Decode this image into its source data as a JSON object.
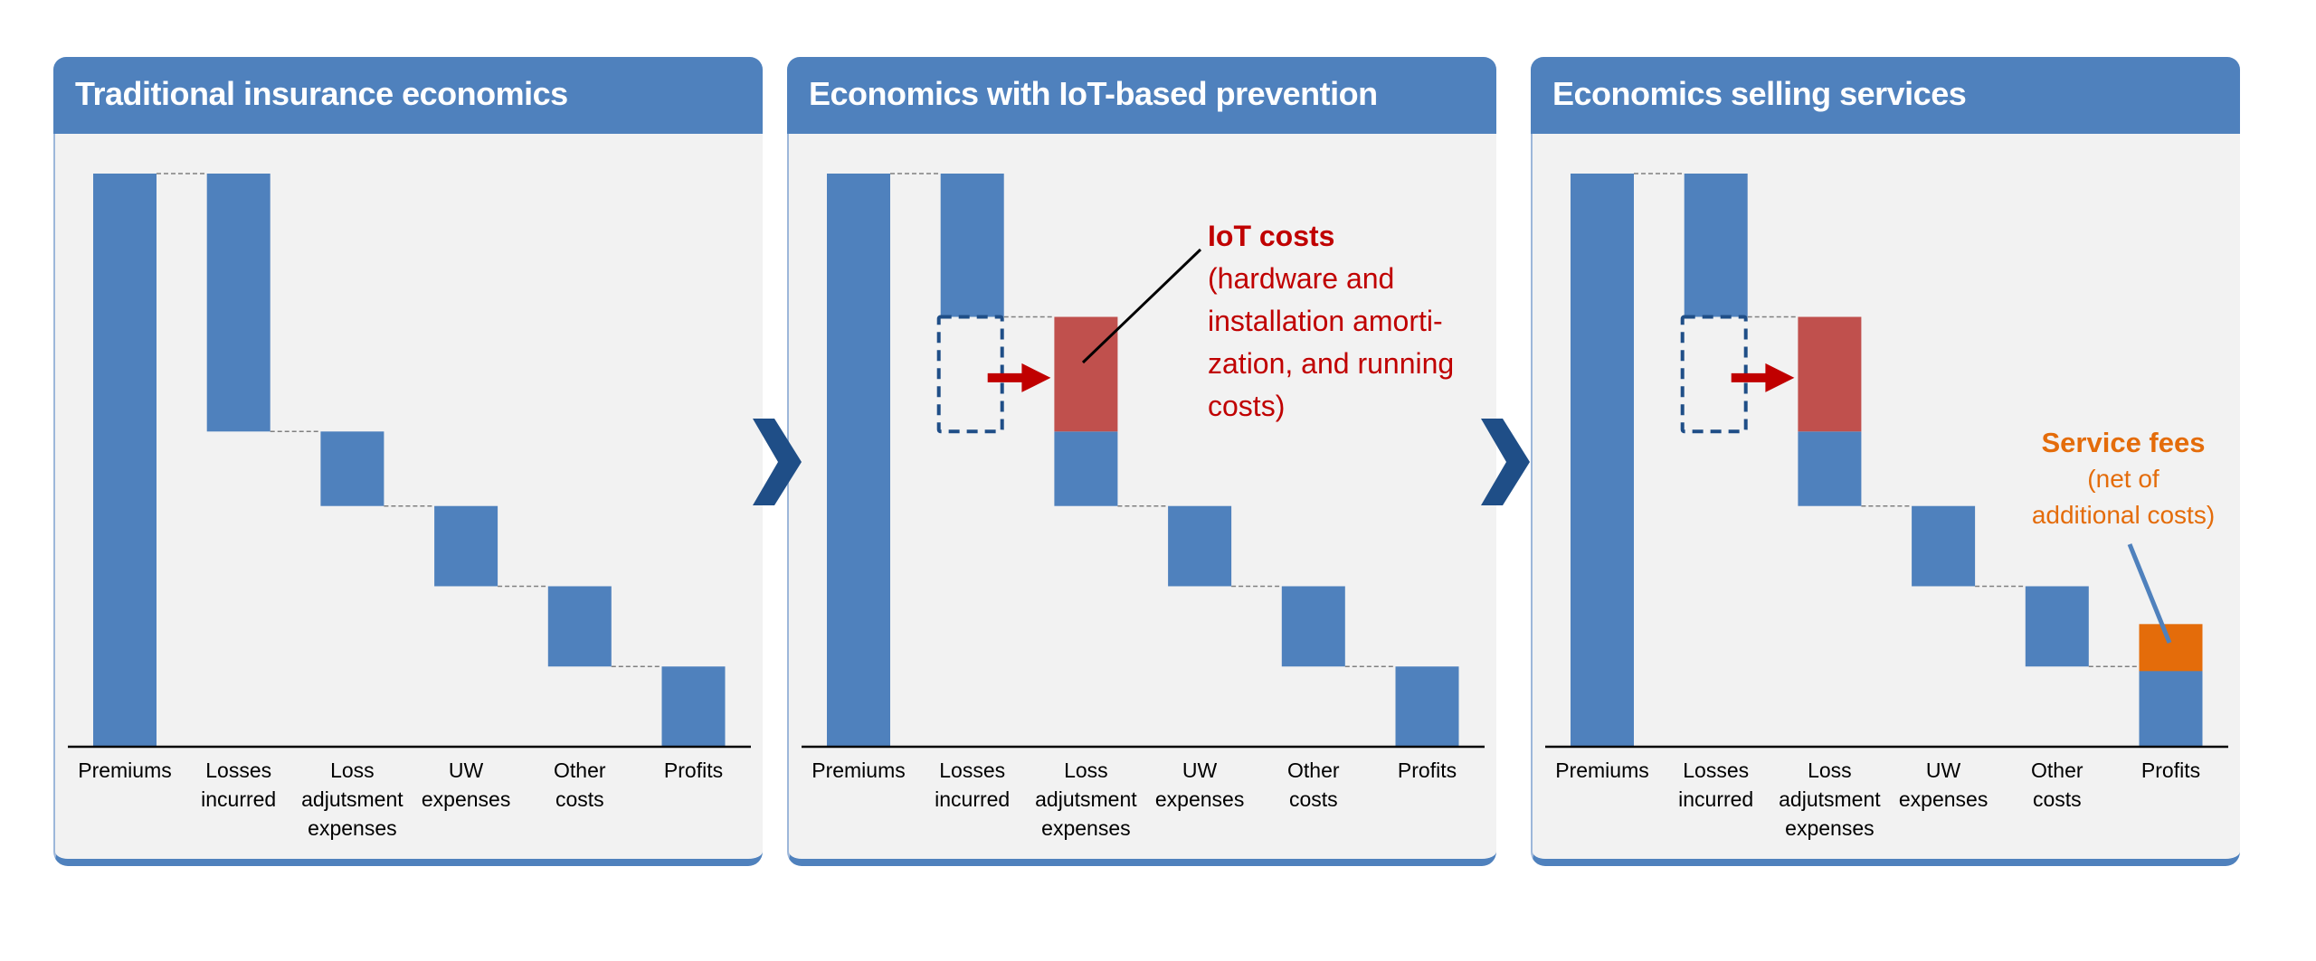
{
  "colors": {
    "header": "#4F81BD",
    "bar": "#4F81BD",
    "iot_cost": "#C0504D",
    "arrow": "#C00000",
    "service_fee": "#E46C0A",
    "chevron": "#1F4E87",
    "dashed_box": "#1F4E87",
    "panel_bg": "#F2F2F2"
  },
  "chart_data": [
    {
      "type": "waterfall",
      "title": "Traditional insurance economics",
      "categories": [
        "Premiums",
        "Losses incurred",
        "Loss adjutsment expenses",
        "UW expenses",
        "Other costs",
        "Profits"
      ],
      "category_lines": [
        [
          "Premiums"
        ],
        [
          "Losses",
          "incurred"
        ],
        [
          "Loss",
          "adjutsment",
          "expenses"
        ],
        [
          "UW",
          "expenses"
        ],
        [
          "Other",
          "costs"
        ],
        [
          "Profits"
        ]
      ],
      "values": [
        100,
        -45,
        -13,
        -14,
        -14,
        14
      ],
      "ylim": [
        0,
        100
      ],
      "grid": false
    },
    {
      "type": "waterfall",
      "title": "Economics with IoT-based prevention",
      "categories": [
        "Premiums",
        "Losses incurred",
        "Loss adjutsment expenses",
        "UW expenses",
        "Other costs",
        "Profits"
      ],
      "category_lines": [
        [
          "Premiums"
        ],
        [
          "Losses",
          "incurred"
        ],
        [
          "Loss",
          "adjutsment",
          "expenses"
        ],
        [
          "UW",
          "expenses"
        ],
        [
          "Other",
          "costs"
        ],
        [
          "Profits"
        ]
      ],
      "values": [
        100,
        -25,
        -13,
        -14,
        -14,
        14
      ],
      "iot_costs": 20,
      "avoided_losses": 20,
      "ylim": [
        0,
        100
      ],
      "grid": false,
      "annotation": {
        "title": "IoT costs",
        "lines": [
          "(hardware and",
          "installation amorti-",
          "zation, and running",
          "costs)"
        ]
      }
    },
    {
      "type": "waterfall",
      "title": "Economics selling services",
      "categories": [
        "Premiums",
        "Losses incurred",
        "Loss adjutsment expenses",
        "UW expenses",
        "Other costs",
        "Profits"
      ],
      "category_lines": [
        [
          "Premiums"
        ],
        [
          "Losses",
          "incurred"
        ],
        [
          "Loss",
          "adjutsment",
          "expenses"
        ],
        [
          "UW",
          "expenses"
        ],
        [
          "Other",
          "costs"
        ],
        [
          "Profits"
        ]
      ],
      "values": [
        100,
        -25,
        -13,
        -14,
        -14,
        14
      ],
      "iot_costs": 20,
      "avoided_losses": 20,
      "service_fees": 7.4,
      "ylim": [
        0,
        100
      ],
      "grid": false,
      "annotation": {
        "title": "Service fees",
        "lines": [
          "(net of",
          "additional costs)"
        ]
      }
    }
  ],
  "transitions": [
    {
      "icon": "chevron-right-icon"
    },
    {
      "icon": "chevron-right-icon"
    }
  ]
}
